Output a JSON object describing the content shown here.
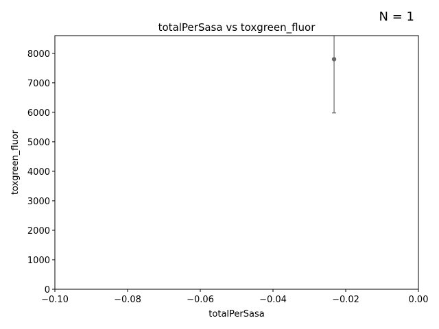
{
  "chart_data": {
    "type": "scatter",
    "title": "totalPerSasa vs toxgreen_fluor",
    "xlabel": "totalPerSasa",
    "ylabel": "toxgreen_fluor",
    "annotation": "N = 1",
    "xlim": [
      -0.1,
      0.0
    ],
    "ylim": [
      0,
      8600
    ],
    "xticks": [
      -0.1,
      -0.08,
      -0.06,
      -0.04,
      -0.02,
      0.0
    ],
    "xtick_labels": [
      "−0.10",
      "−0.08",
      "−0.06",
      "−0.04",
      "−0.02",
      "0.00"
    ],
    "yticks": [
      0,
      1000,
      2000,
      3000,
      4000,
      5000,
      6000,
      7000,
      8000
    ],
    "ytick_labels": [
      "0",
      "1000",
      "2000",
      "3000",
      "4000",
      "5000",
      "6000",
      "7000",
      "8000"
    ],
    "grid": false,
    "color": "#666666",
    "points": [
      {
        "x": -0.0232,
        "y": 7800,
        "yerr_low": 5980,
        "yerr_high": 9620
      }
    ]
  }
}
